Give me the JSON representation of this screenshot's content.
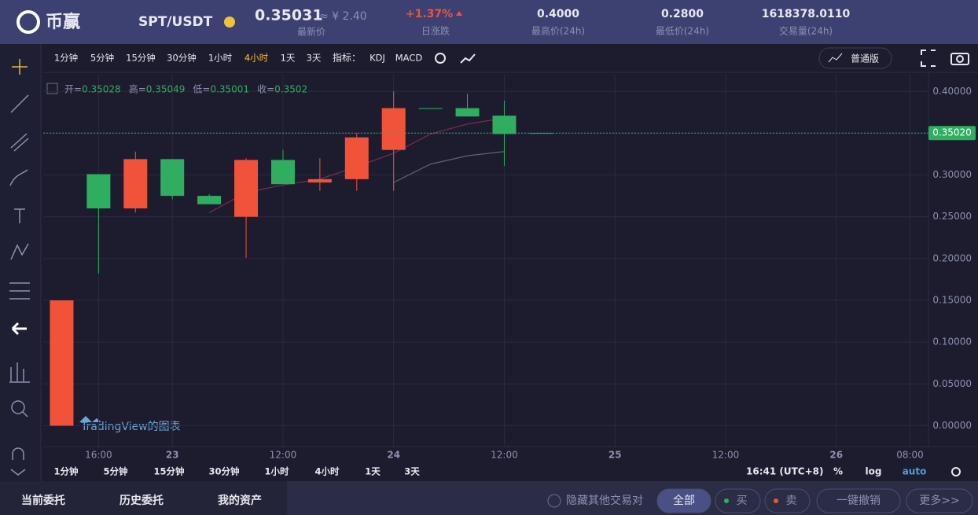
{
  "header": {
    "logo": "币赢",
    "pair": "SPT/USDT",
    "price": "0.35031",
    "price_cny": "≈ ¥ 2.40",
    "price_label": "最新价",
    "change": "+1.37%",
    "change_label": "日涨跌",
    "stats": [
      {
        "value": "0.4000",
        "label": "最高价(24h)"
      },
      {
        "value": "0.2800",
        "label": "最低价(24h)"
      },
      {
        "value": "1618378.0110",
        "label": "交易量(24h)"
      }
    ]
  },
  "toolbar": {
    "intervals": [
      "1分钟",
      "5分钟",
      "15分钟",
      "30分钟",
      "1小时",
      "4小时",
      "1天",
      "3天"
    ],
    "active": 5,
    "indicator_label": "指标：",
    "indicators": [
      "KDJ",
      "MACD"
    ],
    "mode": "普通版"
  },
  "chart_data": {
    "type": "candlestick",
    "open": [
      0,
      0.301,
      0.26,
      0.319,
      0.275,
      0.25,
      0.318,
      0.291,
      0.295,
      0.33,
      0.38,
      0.38,
      0.371,
      0.35028
    ],
    "high": [
      0.15,
      0.301,
      0.328,
      0.319,
      0.277,
      0.32,
      0.33,
      0.32,
      0.35,
      0.4,
      0.38,
      0.397,
      0.389,
      0.35049
    ],
    "low": [
      0,
      0.182,
      0.255,
      0.271,
      0.265,
      0.201,
      0.289,
      0.281,
      0.281,
      0.281,
      0.379,
      0.37,
      0.311,
      0.35001
    ],
    "close": [
      0.15,
      0.26,
      0.319,
      0.275,
      0.265,
      0.318,
      0.289,
      0.295,
      0.345,
      0.38,
      0.379,
      0.37,
      0.349,
      0.3502
    ],
    "up_color": "#f0533a",
    "down_color": "#2eae5e",
    "lines": [
      {
        "color": "#7a2e52",
        "values": [
          null,
          null,
          null,
          null,
          0.255,
          0.279,
          0.288,
          0.295,
          0.31,
          0.326,
          0.349,
          0.361,
          0.368,
          null
        ]
      },
      {
        "color": "#5f6277",
        "values": [
          null,
          null,
          null,
          null,
          null,
          null,
          null,
          null,
          null,
          0.291,
          0.313,
          0.323,
          0.328,
          null
        ]
      }
    ],
    "ohlc_labels": [
      "开=",
      "高=",
      "低=",
      "收="
    ],
    "ohlc_index": 13,
    "last_price": {
      "value": 0.3502,
      "label": "0.35020"
    },
    "xlim": [
      -0.5,
      23.5
    ],
    "ylim": [
      -0.025,
      0.42
    ],
    "xticks": [
      {
        "value": 1,
        "label": "16:00"
      },
      {
        "value": 3,
        "label": "23"
      },
      {
        "value": 6,
        "label": "12:00"
      },
      {
        "value": 9,
        "label": "24"
      },
      {
        "value": 12,
        "label": "12:00"
      },
      {
        "value": 15,
        "label": "25"
      },
      {
        "value": 18,
        "label": "12:00"
      },
      {
        "value": 21,
        "label": "26"
      },
      {
        "value": 23,
        "label": "08:00"
      }
    ],
    "yticks": [
      {
        "value": 0,
        "label": "0.00000"
      },
      {
        "value": 0.05,
        "label": "0.05000"
      },
      {
        "value": 0.1,
        "label": "0.10000"
      },
      {
        "value": 0.15,
        "label": "0.15000"
      },
      {
        "value": 0.2,
        "label": "0.20000"
      },
      {
        "value": 0.25,
        "label": "0.25000"
      },
      {
        "value": 0.3,
        "label": "0.30000"
      },
      {
        "value": 0.35,
        "label": "0.35000"
      },
      {
        "value": 0.4,
        "label": "0.40000"
      }
    ],
    "grid": true,
    "watermark": "TradingView的图表"
  },
  "bottom_bar": {
    "intervals": [
      "1分钟",
      "5分钟",
      "15分钟",
      "30分钟",
      "1小时",
      "4小时",
      "1天",
      "3天"
    ],
    "time": "16:41 (UTC+8)",
    "options": [
      "%",
      "log",
      "auto"
    ]
  },
  "footer": {
    "tabs": [
      "当前委托",
      "历史委托",
      "我的资产"
    ],
    "hide_pairs": "隐藏其他交易对",
    "filters": [
      "全部",
      "买",
      "卖"
    ],
    "cancel_all": "一键撤销",
    "more": "更多>>"
  }
}
